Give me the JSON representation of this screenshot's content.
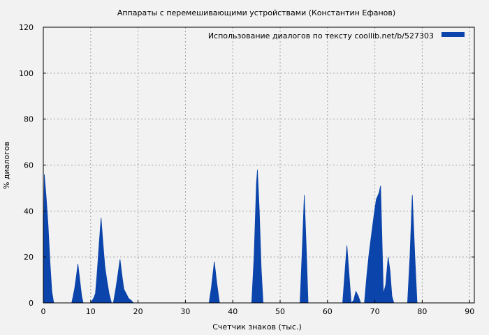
{
  "chart_data": {
    "type": "area",
    "title": "Аппараты с перемешивающими устройствами (Константин Ефанов)",
    "xlabel": "Счетчик знаков (тыс.)",
    "ylabel": "% диалогов",
    "xlim": [
      0,
      91
    ],
    "ylim": [
      0,
      120
    ],
    "xticks": [
      0,
      10,
      20,
      30,
      40,
      50,
      60,
      70,
      80,
      90
    ],
    "yticks": [
      0,
      20,
      40,
      60,
      80,
      100,
      120
    ],
    "grid": true,
    "legend_position": "top-right",
    "colors": {
      "series": "#0b44aa",
      "background": "#f2f2f2",
      "grid": "#a0a0a0"
    },
    "series": [
      {
        "name": "Использование диалогов по тексту  coollib.net/b/527303",
        "points": [
          [
            0,
            0
          ],
          [
            0.2,
            56
          ],
          [
            0.6,
            46
          ],
          [
            1.0,
            34
          ],
          [
            1.4,
            18
          ],
          [
            1.8,
            5
          ],
          [
            2.2,
            0
          ],
          [
            6.0,
            0
          ],
          [
            6.6,
            6
          ],
          [
            7.0,
            12
          ],
          [
            7.3,
            17
          ],
          [
            7.7,
            10
          ],
          [
            8.1,
            3
          ],
          [
            8.4,
            0
          ],
          [
            10.0,
            0
          ],
          [
            10.6,
            2
          ],
          [
            11.0,
            4
          ],
          [
            11.4,
            14
          ],
          [
            11.8,
            26
          ],
          [
            12.2,
            37
          ],
          [
            12.6,
            26
          ],
          [
            13.0,
            16
          ],
          [
            13.4,
            10
          ],
          [
            13.9,
            4
          ],
          [
            14.4,
            0
          ],
          [
            14.8,
            0
          ],
          [
            15.3,
            6
          ],
          [
            15.8,
            13
          ],
          [
            16.2,
            19
          ],
          [
            16.6,
            12
          ],
          [
            17.0,
            6
          ],
          [
            17.5,
            4
          ],
          [
            18.0,
            2
          ],
          [
            18.6,
            1
          ],
          [
            19.0,
            0
          ],
          [
            35.0,
            0
          ],
          [
            35.5,
            7
          ],
          [
            36.1,
            18
          ],
          [
            36.6,
            9
          ],
          [
            37.2,
            0
          ],
          [
            44.0,
            0
          ],
          [
            44.5,
            20
          ],
          [
            45.0,
            52
          ],
          [
            45.2,
            58
          ],
          [
            45.6,
            40
          ],
          [
            46.0,
            15
          ],
          [
            46.4,
            0
          ],
          [
            54.2,
            0
          ],
          [
            54.7,
            25
          ],
          [
            55.1,
            47
          ],
          [
            55.5,
            25
          ],
          [
            55.9,
            0
          ],
          [
            63.2,
            0
          ],
          [
            63.7,
            14
          ],
          [
            64.1,
            25
          ],
          [
            64.5,
            14
          ],
          [
            65.0,
            0
          ],
          [
            65.5,
            1
          ],
          [
            66.0,
            5
          ],
          [
            66.5,
            3
          ],
          [
            67.0,
            0
          ],
          [
            67.8,
            0
          ],
          [
            68.3,
            12
          ],
          [
            68.8,
            22
          ],
          [
            69.3,
            30
          ],
          [
            69.8,
            38
          ],
          [
            70.3,
            45
          ],
          [
            70.9,
            48
          ],
          [
            71.2,
            51
          ],
          [
            71.5,
            28
          ],
          [
            71.8,
            4
          ],
          [
            72.3,
            8
          ],
          [
            72.8,
            20
          ],
          [
            73.2,
            14
          ],
          [
            73.6,
            3
          ],
          [
            74.0,
            0
          ],
          [
            76.9,
            0
          ],
          [
            77.4,
            20
          ],
          [
            77.9,
            47
          ],
          [
            78.4,
            22
          ],
          [
            78.9,
            0
          ],
          [
            90,
            0
          ]
        ]
      }
    ]
  }
}
